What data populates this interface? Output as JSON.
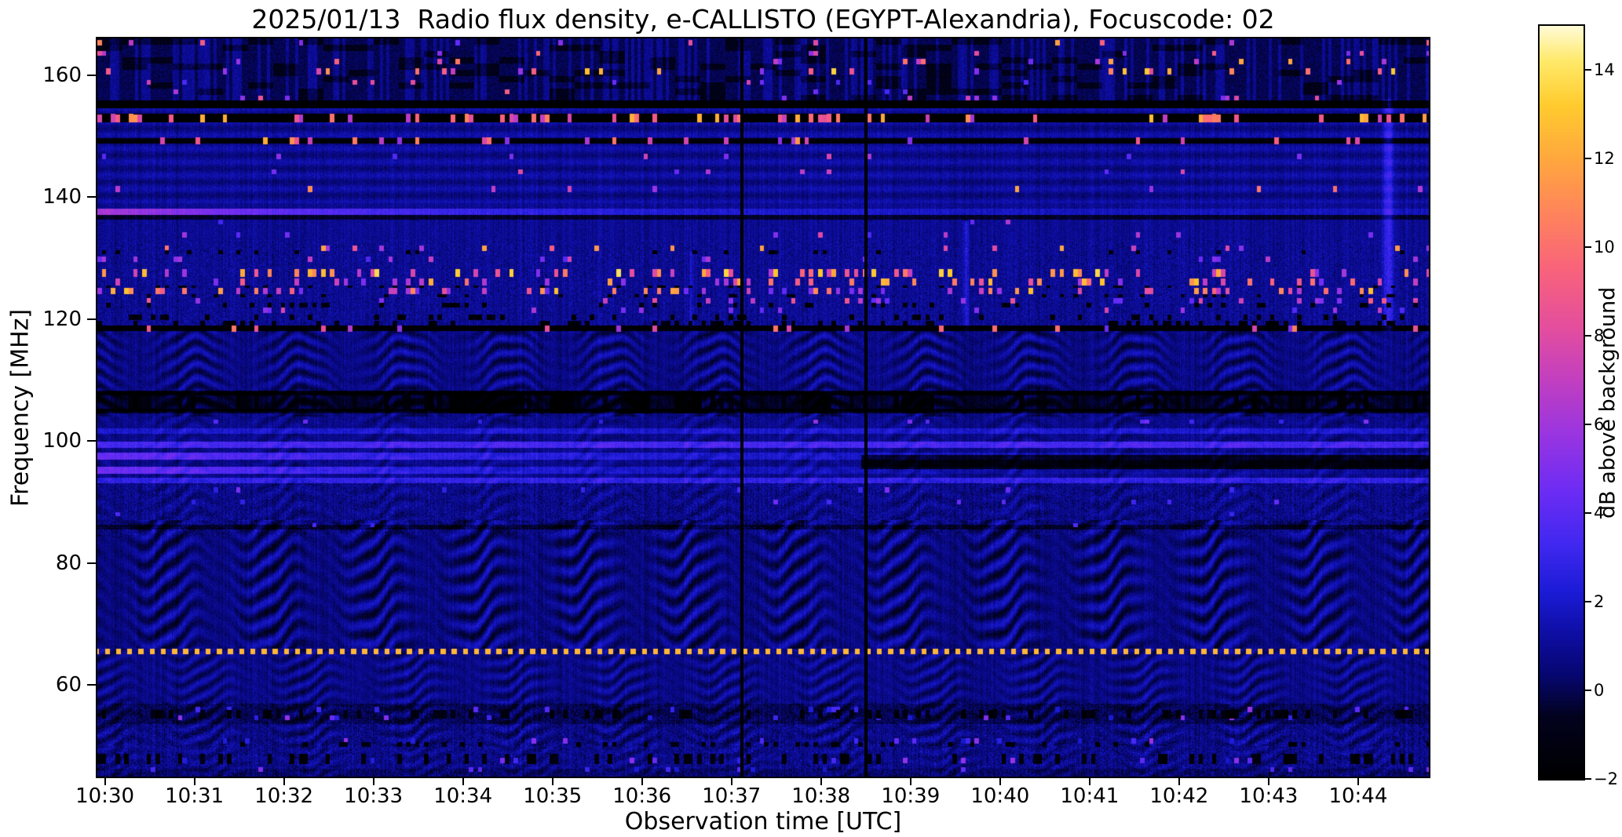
{
  "chart_data": {
    "type": "heatmap",
    "title": "2025/01/13  Radio flux density, e-CALLISTO (EGYPT-Alexandria), Focuscode: 02",
    "xlabel": "Observation time [UTC]",
    "ylabel": "Frequency [MHz]",
    "colorbar_label": "dB above background",
    "x_tick_labels": [
      "10:30",
      "10:31",
      "10:32",
      "10:33",
      "10:34",
      "10:35",
      "10:36",
      "10:37",
      "10:38",
      "10:39",
      "10:40",
      "10:41",
      "10:42",
      "10:43",
      "10:44"
    ],
    "x_tick_minutes": [
      0,
      1,
      2,
      3,
      4,
      5,
      6,
      7,
      8,
      9,
      10,
      11,
      12,
      13,
      14
    ],
    "x_range_minutes": [
      -0.084,
      14.79
    ],
    "y_tick_labels": [
      "160",
      "140",
      "120",
      "100",
      "80",
      "60"
    ],
    "y_tick_values": [
      160,
      140,
      120,
      100,
      80,
      60
    ],
    "y_range_mhz": [
      45,
      166
    ],
    "color_range_db": [
      -2,
      15
    ],
    "colorbar_tick_labels": [
      "14",
      "12",
      "10",
      "8",
      "6",
      "4",
      "2",
      "0",
      "−2"
    ],
    "colorbar_tick_values": [
      14,
      12,
      10,
      8,
      6,
      4,
      2,
      0,
      -2
    ],
    "event_lines_minutes": [
      7.12,
      8.5
    ],
    "event_lines_times": [
      "10:37:07",
      "10:38:30"
    ],
    "grid": false,
    "legend": "colorbar-right",
    "colormap_stops": [
      {
        "v": -2.0,
        "c": "#000000"
      },
      {
        "v": -0.6,
        "c": "#02021e"
      },
      {
        "v": 0.3,
        "c": "#06066e"
      },
      {
        "v": 1.2,
        "c": "#0d0da0"
      },
      {
        "v": 2.2,
        "c": "#1b1bd6"
      },
      {
        "v": 3.3,
        "c": "#4128f0"
      },
      {
        "v": 4.5,
        "c": "#6d2cf4"
      },
      {
        "v": 5.8,
        "c": "#9a35e0"
      },
      {
        "v": 7.0,
        "c": "#c23fc0"
      },
      {
        "v": 8.2,
        "c": "#e44e9d"
      },
      {
        "v": 9.5,
        "c": "#f8637b"
      },
      {
        "v": 10.8,
        "c": "#ff855b"
      },
      {
        "v": 12.0,
        "c": "#ffa83e"
      },
      {
        "v": 13.2,
        "c": "#ffcb2e"
      },
      {
        "v": 14.2,
        "c": "#ffe96a"
      },
      {
        "v": 15.0,
        "c": "#fffbd8"
      }
    ],
    "noise_model": {
      "base_level_db": 0.95,
      "base_noise_db": 1.1,
      "column_noise_db": 0.4,
      "top_region": {
        "f_min": 154.6,
        "base": -0.55,
        "noise": 1.1,
        "blue_column_p": 0.36,
        "dark_patch_p": 0.22
      },
      "noise_bands": [
        {
          "f0": 118,
          "f1": 133,
          "amp": 1.2
        },
        {
          "f0": 45,
          "f1": 57.2,
          "amp": 1.6
        },
        {
          "f0": 84.5,
          "f1": 93.5,
          "amp": 1.5
        }
      ],
      "stripe_band": {
        "f0": 139,
        "f1": 154.6,
        "amp": 0.45,
        "period_mhz": 2.2
      },
      "black_band": {
        "f0": 152.3,
        "f1": 153.6,
        "bright_p": 0.09,
        "bright": [
          6,
          13
        ]
      },
      "dotted_line": {
        "f": 65.5,
        "h": 0.42,
        "period_min": 0.125,
        "duty": 0.45,
        "value": 12.5
      },
      "ripple_regions": [
        {
          "f0": 104,
          "f1": 118.6,
          "lambda": 2.3,
          "amp": 1.05,
          "phase": 0.3
        },
        {
          "f0": 87,
          "f1": 104,
          "lambda": 2.5,
          "amp": 0.55,
          "phase": 1.1
        },
        {
          "f0": 66,
          "f1": 87,
          "lambda": 3.0,
          "amp": 1.3,
          "phase": 2.0
        },
        {
          "f0": 50,
          "f1": 66,
          "lambda": 2.1,
          "amp": 0.9,
          "phase": 0.6
        },
        {
          "f0": 45,
          "f1": 50,
          "lambda": 1.8,
          "amp": 0.55,
          "phase": 0.2
        }
      ],
      "ripple_time_period_min": 1.17,
      "lines": [
        {
          "f": 137.6,
          "h": 0.55,
          "amp": 4.6,
          "tau": 3.2,
          "floor": 0.7
        },
        {
          "f": 136.7,
          "h": 0.4,
          "amp": -1.5
        },
        {
          "f": 101.6,
          "h": 0.45,
          "amp": 1.3
        },
        {
          "f": 99.4,
          "h": 0.5,
          "amp": 2.6
        },
        {
          "f": 97.5,
          "h": 0.55,
          "amp": 3.2,
          "tau": 6,
          "floor": 0.3
        },
        {
          "f": 95.2,
          "h": 0.6,
          "amp": 3.8,
          "tau": 5,
          "floor": 0
        },
        {
          "f": 93.6,
          "h": 0.45,
          "amp": 2.0
        },
        {
          "f": 107.9,
          "h": 0.4,
          "amp": -1.6
        },
        {
          "f": 104.9,
          "h": 0.4,
          "amp": -1.4
        },
        {
          "f": 85.9,
          "h": 0.4,
          "amp": -1.2
        }
      ],
      "dark_bands": [
        {
          "f0": 154.6,
          "f1": 155.8,
          "sub": -2.6
        },
        {
          "f0": 148.8,
          "f1": 149.7,
          "sub": -2.2
        },
        {
          "f0": 118.0,
          "f1": 118.9,
          "sub": -3.0
        },
        {
          "f0": 104.8,
          "f1": 108.1,
          "sub": -1.35
        },
        {
          "f0": 104.5,
          "f1": 108.2,
          "sub": -1.3,
          "t0": 3.2,
          "t1": 9.2,
          "gate": 0.45
        },
        {
          "f0": 95.4,
          "f1": 97.7,
          "sub": -2.3,
          "t0": 8.45,
          "t1": 14.9
        },
        {
          "f0": 53.6,
          "f1": 56.9,
          "sub": -0.7
        },
        {
          "f0": 45.0,
          "f1": 46.3,
          "sub": -0.5
        }
      ],
      "speckle_rows": [
        {
          "f": 165.3,
          "h": 1.0,
          "p": 0.05,
          "a": [
            4,
            12
          ]
        },
        {
          "f": 163.6,
          "h": 0.8,
          "p": 0.03,
          "a": [
            4,
            10
          ]
        },
        {
          "f": 162.2,
          "h": 0.9,
          "p": 0.05,
          "a": [
            4,
            12
          ]
        },
        {
          "f": 160.6,
          "h": 1.1,
          "p": 0.07,
          "a": [
            5,
            14
          ]
        },
        {
          "f": 158.8,
          "h": 0.8,
          "p": 0.03,
          "a": [
            3,
            9
          ]
        },
        {
          "f": 157.3,
          "h": 0.8,
          "p": 0.04,
          "a": [
            3,
            10
          ]
        },
        {
          "f": 156.2,
          "h": 0.7,
          "p": 0.03,
          "a": [
            3,
            9
          ]
        },
        {
          "f": 152.9,
          "h": 1.2,
          "p": 0.09,
          "a": [
            6,
            13
          ]
        },
        {
          "f": 149.2,
          "h": 1.2,
          "p": 0.1,
          "a": [
            5,
            13
          ]
        },
        {
          "f": 146.6,
          "h": 0.9,
          "p": 0.04,
          "a": [
            3,
            8
          ]
        },
        {
          "f": 144.1,
          "h": 0.8,
          "p": 0.03,
          "a": [
            3,
            8
          ]
        },
        {
          "f": 141.3,
          "h": 1.0,
          "p": 0.04,
          "a": [
            5,
            12
          ]
        },
        {
          "f": 135.9,
          "h": 0.8,
          "p": 0.02,
          "a": [
            3,
            7
          ]
        },
        {
          "f": 133.8,
          "h": 0.8,
          "p": 0.03,
          "a": [
            3,
            8
          ]
        },
        {
          "f": 131.6,
          "h": 1.0,
          "p": 0.09,
          "a": [
            4,
            12
          ]
        },
        {
          "f": 129.8,
          "h": 0.9,
          "p": 0.05,
          "a": [
            3,
            8
          ]
        },
        {
          "f": 127.6,
          "h": 1.3,
          "p": 0.22,
          "a": [
            5,
            14
          ]
        },
        {
          "f": 126.1,
          "h": 1.1,
          "p": 0.17,
          "a": [
            4,
            13
          ]
        },
        {
          "f": 124.6,
          "h": 1.1,
          "p": 0.17,
          "a": [
            4,
            13
          ]
        },
        {
          "f": 123.0,
          "h": 1.0,
          "p": 0.11,
          "a": [
            4,
            10
          ]
        },
        {
          "f": 121.4,
          "h": 0.9,
          "p": 0.06,
          "a": [
            3,
            8
          ]
        },
        {
          "f": 118.4,
          "h": 1.0,
          "p": 0.08,
          "a": [
            4,
            11
          ]
        },
        {
          "f": 103.2,
          "h": 0.7,
          "p": 0.04,
          "a": [
            2.5,
            6
          ]
        },
        {
          "f": 92.0,
          "h": 0.8,
          "p": 0.03,
          "a": [
            2.5,
            5
          ]
        },
        {
          "f": 90.0,
          "h": 0.7,
          "p": 0.03,
          "a": [
            2.5,
            5
          ]
        },
        {
          "f": 88.0,
          "h": 0.7,
          "p": 0.02,
          "a": [
            2.5,
            5
          ]
        },
        {
          "f": 86.2,
          "h": 0.7,
          "p": 0.02,
          "a": [
            2.5,
            5
          ]
        },
        {
          "f": 56.0,
          "h": 0.8,
          "p": 0.05,
          "a": [
            2,
            6
          ]
        },
        {
          "f": 54.6,
          "h": 0.8,
          "p": 0.05,
          "a": [
            2,
            6
          ]
        },
        {
          "f": 50.8,
          "h": 0.9,
          "p": 0.07,
          "a": [
            2,
            6
          ]
        },
        {
          "f": 47.6,
          "h": 0.9,
          "p": 0.06,
          "a": [
            2,
            6
          ]
        },
        {
          "f": 46.2,
          "h": 0.8,
          "p": 0.04,
          "a": [
            2,
            5
          ]
        },
        {
          "f": 55.2,
          "h": 1.4,
          "p": 0.25,
          "a": [
            -2,
            -1
          ],
          "dark": true
        },
        {
          "f": 47.9,
          "h": 1.6,
          "p": 0.22,
          "a": [
            -2,
            -1
          ],
          "dark": true
        },
        {
          "f": 50.3,
          "h": 0.8,
          "p": 0.15,
          "a": [
            -2,
            -1
          ],
          "dark": true
        },
        {
          "f": 120.3,
          "h": 1.0,
          "p": 0.2,
          "a": [
            -2,
            -1
          ],
          "dark": true
        },
        {
          "f": 122.3,
          "h": 0.8,
          "p": 0.15,
          "a": [
            -2,
            -1
          ],
          "dark": true
        },
        {
          "f": 119.3,
          "h": 0.8,
          "p": 0.2,
          "a": [
            -2,
            -1
          ],
          "dark": true
        },
        {
          "f": 106.3,
          "h": 2.4,
          "p": 0.3,
          "a": [
            -2,
            -1
          ],
          "dark": true
        },
        {
          "f": 131.0,
          "h": 0.6,
          "p": 0.1,
          "a": [
            -2,
            -1
          ],
          "dark": true
        },
        {
          "f": 125.3,
          "h": 0.5,
          "p": 0.12,
          "a": [
            -2,
            -1
          ],
          "dark": true
        },
        {
          "f": 123.8,
          "h": 0.5,
          "p": 0.12,
          "a": [
            -2,
            -1
          ],
          "dark": true
        }
      ],
      "vertical_streaks": [
        {
          "t": 9.62,
          "halfw": 0.05,
          "f0": 118,
          "f1": 136,
          "amp": 1.6
        },
        {
          "t": 14.34,
          "halfw": 0.09,
          "f0": 118,
          "f1": 156,
          "amp": 2.2
        },
        {
          "t": 6.55,
          "halfw": 0.03,
          "f0": 118,
          "f1": 131,
          "amp": 1.2
        }
      ]
    }
  }
}
